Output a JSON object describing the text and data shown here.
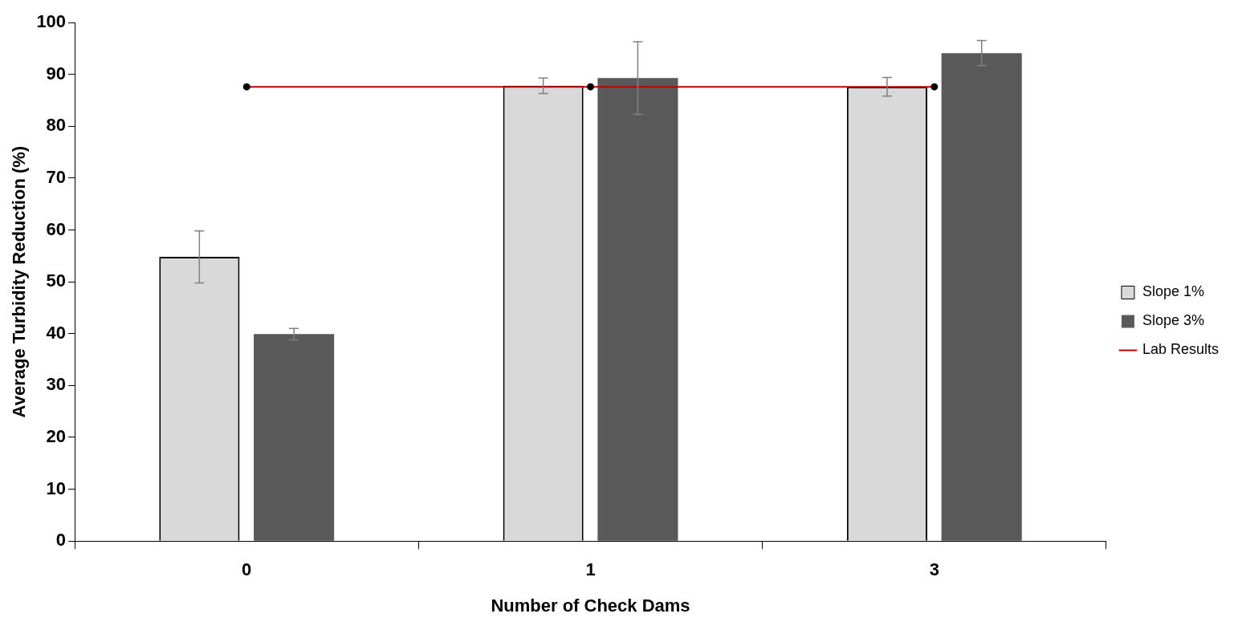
{
  "chart_data": {
    "type": "bar",
    "xlabel": "Number of Check Dams",
    "ylabel": "Average Turbidity Reduction (%)",
    "categories": [
      "0",
      "1",
      "3"
    ],
    "series": [
      {
        "name": "Slope 1%",
        "color": "#d9d9d9",
        "values": [
          54.8,
          87.8,
          87.6
        ],
        "errors": [
          5,
          1.5,
          1.8
        ]
      },
      {
        "name": "Slope 3%",
        "color": "#595959",
        "values": [
          39.9,
          89.3,
          94.1
        ],
        "errors": [
          1.1,
          7,
          2.4
        ]
      },
      {
        "name": "Lab Results",
        "type": "line",
        "color": "#c00000",
        "values": [
          87.6,
          87.6,
          87.6
        ],
        "marker": "circle"
      }
    ],
    "ylim": [
      0,
      100
    ],
    "yticks": [
      0,
      10,
      20,
      30,
      40,
      50,
      60,
      70,
      80,
      90,
      100
    ],
    "grid": false,
    "legend": "right"
  }
}
